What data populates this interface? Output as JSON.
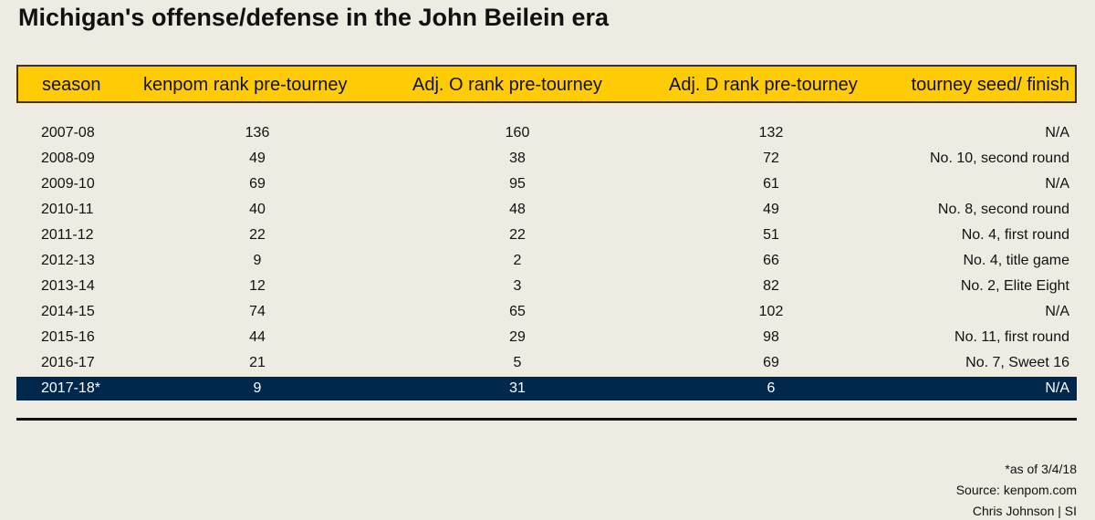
{
  "title": "Michigan's offense/defense in the John Beilein era",
  "colors": {
    "header_bg": "#ffcb05",
    "highlight_bg": "#00274c",
    "background": "#eeebe2"
  },
  "chart_data": {
    "type": "table",
    "columns": [
      "season",
      "kenpom rank pre-tourney",
      "Adj. O rank pre-tourney",
      "Adj. D rank pre-tourney",
      "tourney seed/ finish"
    ],
    "rows": [
      [
        "2007-08",
        "136",
        "160",
        "132",
        "N/A"
      ],
      [
        "2008-09",
        "49",
        "38",
        "72",
        "No. 10, second round"
      ],
      [
        "2009-10",
        "69",
        "95",
        "61",
        "N/A"
      ],
      [
        "2010-11",
        "40",
        "48",
        "49",
        "No. 8, second round"
      ],
      [
        "2011-12",
        "22",
        "22",
        "51",
        "No. 4, first round"
      ],
      [
        "2012-13",
        "9",
        "2",
        "66",
        "No. 4, title game"
      ],
      [
        "2013-14",
        "12",
        "3",
        "82",
        "No. 2, Elite Eight"
      ],
      [
        "2014-15",
        "74",
        "65",
        "102",
        "N/A"
      ],
      [
        "2015-16",
        "44",
        "29",
        "98",
        "No. 11, first round"
      ],
      [
        "2016-17",
        "21",
        "5",
        "69",
        "No. 7, Sweet 16"
      ],
      [
        "2017-18*",
        "9",
        "31",
        "6",
        "N/A"
      ]
    ],
    "highlighted_row": "2017-18*"
  },
  "footer": {
    "note": "*as of 3/4/18",
    "source": "Source: kenpom.com",
    "credit": "Chris Johnson | SI"
  }
}
